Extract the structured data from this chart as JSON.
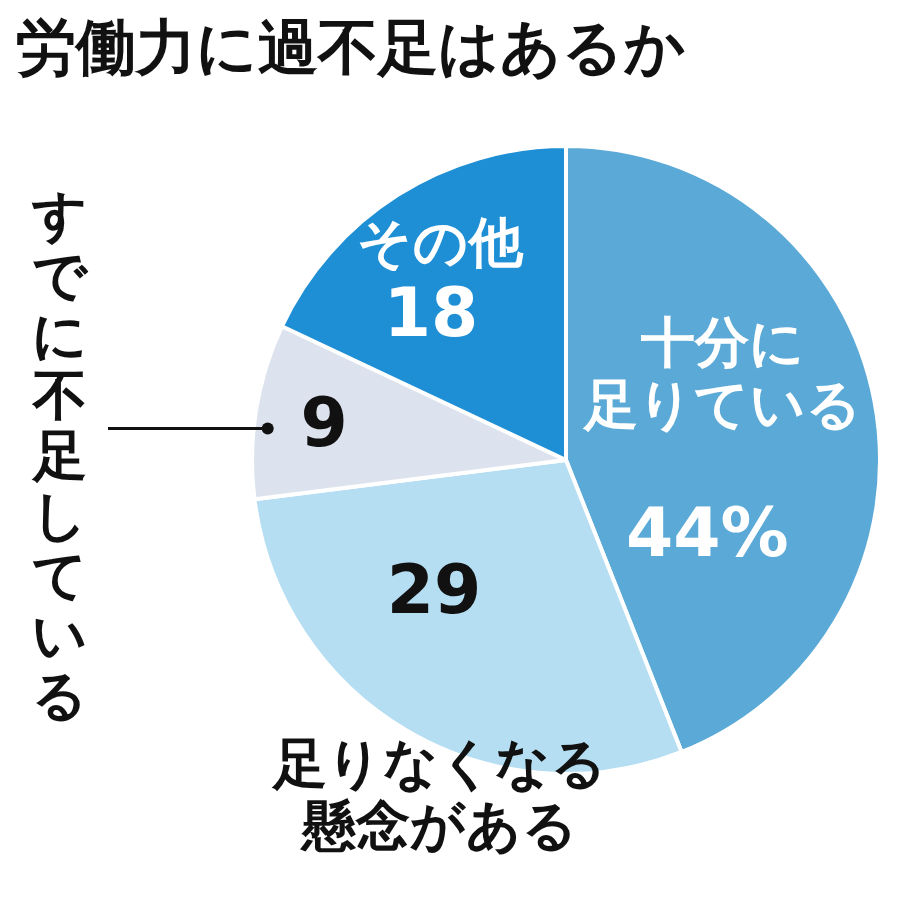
{
  "chart_data": {
    "type": "pie",
    "title": "労働力に過不足はあるか",
    "categories": [
      "十分に足りている",
      "足りなくなる懸念がある",
      "すでに不足している",
      "その他"
    ],
    "values": [
      44,
      29,
      9,
      18
    ],
    "colors": [
      "#5aa9d6",
      "#b5def2",
      "#dde3ee",
      "#1e8fd5"
    ],
    "value_labels": [
      "44%",
      "29",
      "9",
      "18"
    ],
    "legend": false
  }
}
